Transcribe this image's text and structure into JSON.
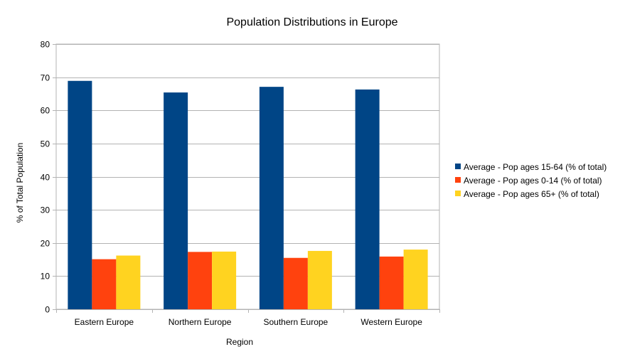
{
  "chart_data": {
    "type": "bar",
    "title": "Population Distributions in Europe",
    "xlabel": "Region",
    "ylabel": "% of Total Population",
    "ylim": [
      0,
      80
    ],
    "yticks": [
      0,
      10,
      20,
      30,
      40,
      50,
      60,
      70,
      80
    ],
    "grid": true,
    "legend_position": "right",
    "categories": [
      "Eastern Europe",
      "Northern Europe",
      "Southern Europe",
      "Western Europe"
    ],
    "series": [
      {
        "name": "Average - Pop ages 15-64 (% of total)",
        "color": "#004586",
        "values": [
          68.9,
          65.4,
          67.1,
          66.3
        ]
      },
      {
        "name": "Average - Pop ages 0-14 (% of total)",
        "color": "#ff420e",
        "values": [
          15.1,
          17.3,
          15.5,
          15.9
        ]
      },
      {
        "name": "Average - Pop ages 65+ (% of total)",
        "color": "#ffd320",
        "values": [
          16.2,
          17.4,
          17.6,
          18.0
        ]
      }
    ]
  }
}
